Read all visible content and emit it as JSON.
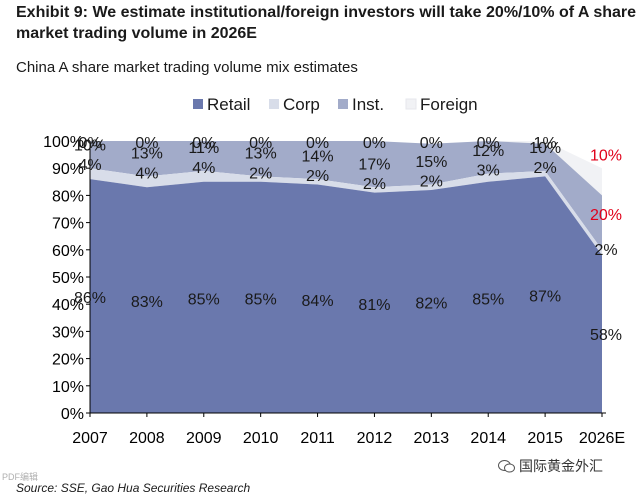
{
  "header": {
    "title": "Exhibit 9: We estimate institutional/foreign investors will take 20%/10% of A share market trading volume in 2026E",
    "subtitle": "China A share market trading volume mix estimates"
  },
  "footer": {
    "source": "Source: SSE, Gao Hua Securities Research",
    "watermark": "国际黄金外汇",
    "corner_mark": "PDF编辑"
  },
  "colors": {
    "retail": "#6a78ad",
    "corp": "#d8dde9",
    "inst": "#a2abc9",
    "foreign": "#f1f2f5",
    "highlight": "#e0001a"
  },
  "chart_data": {
    "type": "area",
    "stacked": true,
    "title": "China A share market trading volume mix estimates",
    "xlabel": "",
    "ylabel": "",
    "ylim": [
      0,
      100
    ],
    "y_ticks": [
      "0%",
      "10%",
      "20%",
      "30%",
      "40%",
      "50%",
      "60%",
      "70%",
      "80%",
      "90%",
      "100%"
    ],
    "categories": [
      "2007",
      "2008",
      "2009",
      "2010",
      "2011",
      "2012",
      "2013",
      "2014",
      "2015",
      "2026E"
    ],
    "legend": [
      "Retail",
      "Corp",
      "Inst.",
      "Foreign"
    ],
    "legend_position": "top",
    "series": [
      {
        "name": "Retail",
        "values": [
          86,
          83,
          85,
          85,
          84,
          81,
          82,
          85,
          87,
          58
        ],
        "labels": [
          "86%",
          "83%",
          "85%",
          "85%",
          "84%",
          "81%",
          "82%",
          "85%",
          "87%",
          "58%"
        ]
      },
      {
        "name": "Corp",
        "values": [
          4,
          4,
          4,
          2,
          2,
          2,
          2,
          3,
          2,
          2
        ],
        "labels": [
          "4%",
          "4%",
          "4%",
          "2%",
          "2%",
          "2%",
          "2%",
          "3%",
          "2%",
          "2%"
        ]
      },
      {
        "name": "Inst.",
        "values": [
          10,
          13,
          11,
          13,
          14,
          17,
          15,
          12,
          10,
          20
        ],
        "labels": [
          "10%",
          "13%",
          "11%",
          "13%",
          "14%",
          "17%",
          "15%",
          "12%",
          "10%",
          "20%"
        ]
      },
      {
        "name": "Foreign",
        "values": [
          0,
          0,
          0,
          0,
          0,
          0,
          0,
          0,
          1,
          10
        ],
        "labels": [
          "0%",
          "0%",
          "0%",
          "0%",
          "0%",
          "0%",
          "0%",
          "0%",
          "1%",
          "10%"
        ]
      }
    ],
    "highlighted_labels": {
      "category": "2026E",
      "series": [
        "Inst.",
        "Foreign"
      ]
    }
  }
}
